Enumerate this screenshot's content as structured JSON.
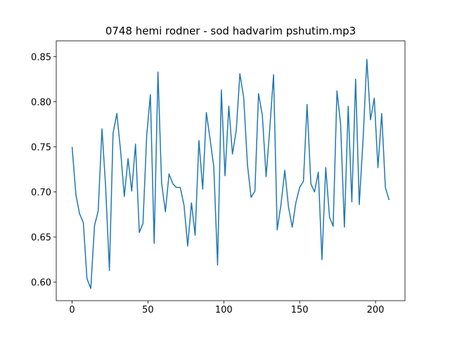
{
  "chart_data": {
    "type": "line",
    "title": "0748 hemi rodner - sod hadvarim pshutim.mp3",
    "x": [
      0,
      2.5,
      4.9,
      7.4,
      9.8,
      12.3,
      14.8,
      17.2,
      19.7,
      22.1,
      24.6,
      27.0,
      29.5,
      32.0,
      34.4,
      36.9,
      39.3,
      41.8,
      44.3,
      46.7,
      49.2,
      51.6,
      54.1,
      56.6,
      59.0,
      61.5,
      63.9,
      66.4,
      68.8,
      71.3,
      73.8,
      76.2,
      78.7,
      81.1,
      83.6,
      86.1,
      88.5,
      91.0,
      93.4,
      95.9,
      98.4,
      100.8,
      103.3,
      105.7,
      108.2,
      110.6,
      113.1,
      115.6,
      118.0,
      120.5,
      122.9,
      125.4,
      127.9,
      130.3,
      132.8,
      135.2,
      137.7,
      140.2,
      142.6,
      145.1,
      147.5,
      150.0,
      152.5,
      154.9,
      157.4,
      159.8,
      162.3,
      164.7,
      167.2,
      169.7,
      172.1,
      174.6,
      177.0,
      179.5,
      182.0,
      184.4,
      186.9,
      189.3,
      191.8,
      194.3,
      196.7,
      199.2,
      201.6,
      204.1,
      206.5,
      209.0
    ],
    "series": [
      {
        "color": "#1f77b4",
        "values": [
          0.75,
          0.697,
          0.676,
          0.666,
          0.604,
          0.593,
          0.663,
          0.679,
          0.77,
          0.706,
          0.613,
          0.765,
          0.787,
          0.745,
          0.695,
          0.737,
          0.701,
          0.753,
          0.655,
          0.665,
          0.763,
          0.808,
          0.643,
          0.833,
          0.71,
          0.678,
          0.72,
          0.709,
          0.705,
          0.705,
          0.685,
          0.64,
          0.688,
          0.652,
          0.757,
          0.703,
          0.788,
          0.758,
          0.728,
          0.619,
          0.813,
          0.718,
          0.795,
          0.742,
          0.768,
          0.831,
          0.805,
          0.73,
          0.694,
          0.701,
          0.809,
          0.785,
          0.717,
          0.77,
          0.83,
          0.658,
          0.686,
          0.724,
          0.684,
          0.661,
          0.688,
          0.705,
          0.712,
          0.797,
          0.709,
          0.7,
          0.722,
          0.625,
          0.727,
          0.672,
          0.662,
          0.812,
          0.775,
          0.661,
          0.795,
          0.689,
          0.825,
          0.686,
          0.758,
          0.847,
          0.78,
          0.804,
          0.727,
          0.787,
          0.705,
          0.691
        ]
      }
    ],
    "xlim": [
      -10.45,
      219.45
    ],
    "xticks": [
      0,
      50,
      100,
      150,
      200
    ],
    "ylim": [
      0.5795,
      0.8675
    ],
    "yticks": [
      {
        "value": 0.6,
        "label": "0.60"
      },
      {
        "value": 0.65,
        "label": "0.65"
      },
      {
        "value": 0.7,
        "label": "0.70"
      },
      {
        "value": 0.75,
        "label": "0.75"
      },
      {
        "value": 0.8,
        "label": "0.80"
      },
      {
        "value": 0.85,
        "label": "0.85"
      }
    ]
  }
}
